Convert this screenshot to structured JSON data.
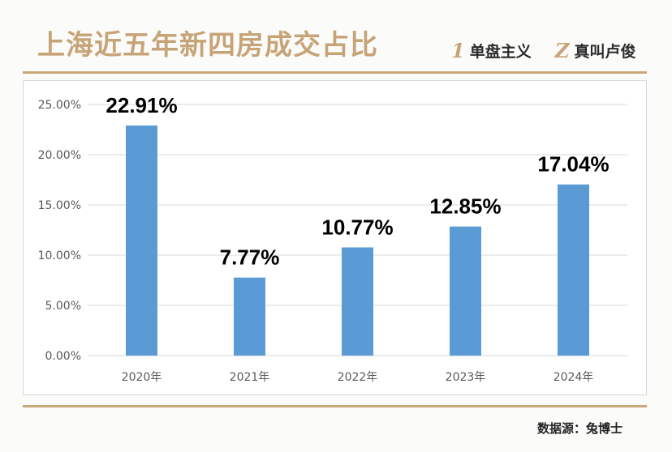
{
  "header": {
    "title": "上海近五年新四房成交占比",
    "brand_1_mark": "1",
    "brand_1_name": "单盘主义",
    "brand_2_mark": "Z",
    "brand_2_name": "真叫卢俊"
  },
  "footer": {
    "source": "数据源：兔博士"
  },
  "colors": {
    "bar": "#5b9bd5",
    "accent": "#c7a477",
    "grid": "#d9d9d9",
    "axis_text": "#595959"
  },
  "chart_data": {
    "type": "bar",
    "categories": [
      "2020年",
      "2021年",
      "2022年",
      "2023年",
      "2024年"
    ],
    "values": [
      22.91,
      7.77,
      10.77,
      12.85,
      17.04
    ],
    "data_labels": [
      "22.91%",
      "7.77%",
      "10.77%",
      "12.85%",
      "17.04%"
    ],
    "yticks": [
      "0.00%",
      "5.00%",
      "10.00%",
      "15.00%",
      "20.00%",
      "25.00%"
    ],
    "ylim": [
      0,
      25
    ],
    "grid": true,
    "title": "",
    "xlabel": "",
    "ylabel": ""
  }
}
